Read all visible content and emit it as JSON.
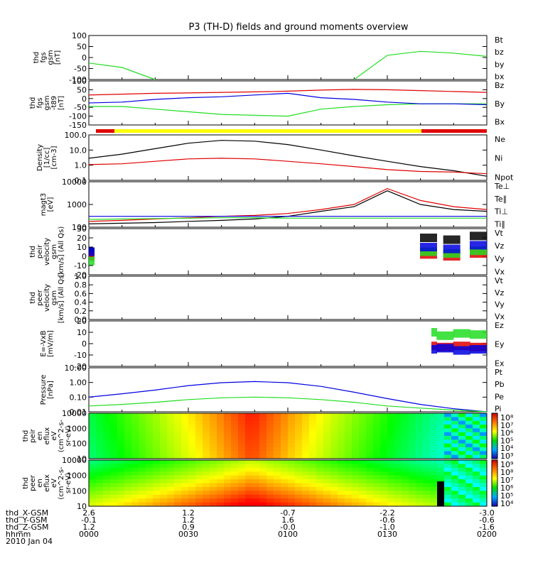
{
  "title": "P3 (TH-D) fields and ground moments overview",
  "colors": {
    "black": "#000000",
    "red": "#e00000",
    "green": "#22dd22",
    "blue": "#0000e0",
    "yellow": "#ffff00"
  },
  "panels": [
    {
      "id": "fgs",
      "ylabel": [
        "thd",
        "fgs",
        "gsm",
        "[nT]"
      ],
      "yticks": [
        "100",
        "50",
        "0",
        "-50",
        "-100"
      ],
      "legend": [
        {
          "text": "Bt",
          "color": "black"
        },
        {
          "text": "bz",
          "color": "red"
        },
        {
          "text": "by",
          "color": "green"
        },
        {
          "text": "bx",
          "color": "blue"
        }
      ]
    },
    {
      "id": "fgs-t89",
      "ylabel": [
        "thd",
        "fgs",
        "gsm",
        "-t89",
        "[nT]"
      ],
      "yticks": [
        "100",
        "50",
        "0",
        "-50",
        "-100",
        "-150"
      ],
      "legend": [
        {
          "text": "Bz",
          "color": "red"
        },
        {
          "text": "By",
          "color": "green"
        },
        {
          "text": "Bx",
          "color": "blue"
        }
      ]
    },
    {
      "id": "density",
      "ylabel": [
        "Density",
        "[1/cc]",
        "[cm-3]"
      ],
      "yticks": [
        "100.0",
        "10.0",
        "1.0",
        "0.1"
      ],
      "legend": [
        {
          "text": "Ne",
          "color": "red"
        },
        {
          "text": "Ni",
          "color": "black"
        },
        {
          "text": "Npot",
          "color": "blue"
        }
      ]
    },
    {
      "id": "temperature",
      "ylabel": [
        "magt3",
        "[eV]"
      ],
      "yticks": [
        "10000",
        "1000",
        "100"
      ],
      "legend": [
        {
          "text": "Te⊥",
          "color": "red"
        },
        {
          "text": "Te∥",
          "color": "black"
        },
        {
          "text": "Ti⊥",
          "color": "blue"
        },
        {
          "text": "Ti∥",
          "color": "green"
        }
      ]
    },
    {
      "id": "peir-velocity",
      "ylabel": [
        "thd",
        "peir",
        "velocity",
        "gsm",
        "[km/s] (All Qs)"
      ],
      "yticks": [
        "30",
        "20",
        "10",
        "0",
        "-10",
        "-20"
      ],
      "legend": [
        {
          "text": "Vt",
          "color": "black"
        },
        {
          "text": "Vz",
          "color": "red"
        },
        {
          "text": "Vy",
          "color": "green"
        },
        {
          "text": "Vx",
          "color": "blue"
        }
      ]
    },
    {
      "id": "peer-velocity",
      "ylabel": [
        "thd",
        "peer",
        "velocity",
        "gsm",
        "[km/s] (All Qs)"
      ],
      "yticks": [
        "1.0",
        "0.8",
        "0.6",
        "0.4",
        "0.2",
        "0.0"
      ],
      "legend": [
        {
          "text": "Vt",
          "color": "black"
        },
        {
          "text": "Vz",
          "color": "red"
        },
        {
          "text": "Vy",
          "color": "green"
        },
        {
          "text": "Vx",
          "color": "blue"
        }
      ]
    },
    {
      "id": "efield",
      "ylabel": [
        "E=-VxB",
        "[mV/m]"
      ],
      "yticks": [
        "20",
        "10",
        "0",
        "-10",
        "-20"
      ],
      "legend": [
        {
          "text": "Ez",
          "color": "red"
        },
        {
          "text": "Ey",
          "color": "green"
        },
        {
          "text": "Ex",
          "color": "blue"
        }
      ]
    },
    {
      "id": "pressure",
      "ylabel": [
        "Pressure",
        "[nPa]"
      ],
      "yticks": [
        "10.00",
        "1.00",
        "0.10",
        "0.01"
      ],
      "legend": [
        {
          "text": "Pt",
          "color": "black"
        },
        {
          "text": "Pb",
          "color": "red"
        },
        {
          "text": "Pe",
          "color": "green"
        },
        {
          "text": "Pi",
          "color": "blue"
        }
      ]
    },
    {
      "id": "peir-spec",
      "ylabel": [
        "thd",
        "peir",
        "en",
        "eflux",
        "eV",
        "(cm^2-s-",
        "sr-eV)"
      ],
      "yticks": [
        "10000",
        "1000",
        "100",
        "10"
      ],
      "colorbar": [
        "10⁸",
        "10⁷",
        "10⁶",
        "10⁵",
        "10⁴",
        "10³"
      ]
    },
    {
      "id": "peer-spec",
      "ylabel": [
        "thd",
        "peer",
        "en",
        "eflux",
        "eV",
        "(cm^2-s-",
        "sr-eV)"
      ],
      "yticks": [
        "10000",
        "1000",
        "100",
        "10"
      ],
      "colorbar": [
        "10⁹",
        "10⁸",
        "10⁷",
        "10⁶",
        "10⁵",
        "10⁴"
      ]
    }
  ],
  "footer": {
    "rows": [
      {
        "label": "thd_X-GSM",
        "values": [
          "2.6",
          "1.2",
          "-0.7",
          "-2.2",
          "-3.0"
        ]
      },
      {
        "label": "thd_Y-GSM",
        "values": [
          "-0.1",
          "1.2",
          "1.6",
          "-0.6",
          "-0.6"
        ]
      },
      {
        "label": "thd_Z-GSM",
        "values": [
          "1.2",
          "0.9",
          "-0.0",
          "-1.0",
          "-1.6"
        ]
      },
      {
        "label": "hhmm",
        "values": [
          "0000",
          "0030",
          "0100",
          "0130",
          "0200"
        ]
      }
    ],
    "date": "2010 Jan 04"
  },
  "chart_data": [
    {
      "type": "line",
      "panel": "fgs",
      "x": [
        0,
        10,
        20,
        30,
        40,
        50,
        60,
        70,
        80,
        90,
        100,
        110,
        120
      ],
      "ylim": [
        -100,
        100
      ],
      "series": [
        {
          "name": "by",
          "color": "green",
          "values": [
            -25,
            -45,
            -100,
            null,
            null,
            null,
            null,
            null,
            -100,
            10,
            28,
            20,
            5
          ]
        }
      ]
    },
    {
      "type": "line",
      "panel": "fgs-t89",
      "x": [
        0,
        10,
        20,
        30,
        40,
        50,
        60,
        70,
        80,
        90,
        100,
        110,
        120
      ],
      "ylim": [
        -150,
        100
      ],
      "series": [
        {
          "name": "Bz",
          "color": "red",
          "values": [
            20,
            25,
            30,
            32,
            35,
            38,
            42,
            48,
            52,
            50,
            45,
            40,
            35
          ]
        },
        {
          "name": "By",
          "color": "green",
          "values": [
            -45,
            -45,
            -60,
            -75,
            -90,
            -95,
            -100,
            -60,
            -45,
            -35,
            -30,
            -30,
            -30
          ]
        },
        {
          "name": "Bx",
          "color": "blue",
          "values": [
            -25,
            -20,
            -5,
            5,
            10,
            20,
            30,
            5,
            -5,
            -20,
            -30,
            -30,
            -35
          ]
        }
      ]
    },
    {
      "type": "line",
      "panel": "density",
      "yscale": "log",
      "x": [
        0,
        10,
        20,
        30,
        40,
        50,
        60,
        70,
        80,
        90,
        100,
        110,
        120
      ],
      "ylim": [
        0.05,
        100
      ],
      "series": [
        {
          "name": "Ni",
          "color": "black",
          "values": [
            2,
            4,
            10,
            25,
            40,
            35,
            20,
            8,
            3,
            1.2,
            0.5,
            0.25,
            0.1
          ]
        },
        {
          "name": "Ne",
          "color": "red",
          "values": [
            0.7,
            0.8,
            1.2,
            1.8,
            2,
            1.8,
            1.2,
            0.8,
            0.5,
            0.3,
            0.22,
            0.2,
            0.15
          ]
        }
      ]
    },
    {
      "type": "line",
      "panel": "temperature",
      "yscale": "log",
      "x": [
        0,
        10,
        20,
        30,
        40,
        50,
        60,
        70,
        80,
        90,
        100,
        110,
        120
      ],
      "ylim": [
        100,
        10000
      ],
      "series": [
        {
          "name": "Te⊥",
          "color": "red",
          "values": [
            180,
            200,
            230,
            260,
            300,
            330,
            400,
            600,
            1000,
            5000,
            1500,
            800,
            600
          ]
        },
        {
          "name": "Te∥",
          "color": "black",
          "values": [
            140,
            150,
            160,
            180,
            200,
            230,
            300,
            500,
            800,
            4000,
            1000,
            600,
            500
          ]
        },
        {
          "name": "Ti⊥",
          "color": "blue",
          "values": [
            300,
            300,
            300,
            300,
            300,
            300,
            300,
            300,
            300,
            300,
            300,
            300,
            300
          ]
        },
        {
          "name": "Ti∥",
          "color": "green",
          "values": [
            220,
            230,
            240,
            250,
            260,
            260,
            250,
            250,
            250,
            250,
            250,
            250,
            250
          ]
        }
      ]
    },
    {
      "type": "scatter",
      "panel": "peir-velocity",
      "x": [
        0,
        105,
        112,
        120
      ],
      "ylim": [
        -20,
        30
      ],
      "series": [
        {
          "name": "Vt",
          "color": "black",
          "values": [
            5,
            20,
            18,
            22
          ]
        },
        {
          "name": "Vz",
          "color": "red",
          "values": [
            0,
            2,
            0,
            3
          ]
        },
        {
          "name": "Vy",
          "color": "green",
          "values": [
            -5,
            5,
            3,
            6
          ]
        },
        {
          "name": "Vx",
          "color": "blue",
          "values": [
            5,
            10,
            8,
            12
          ]
        }
      ]
    },
    {
      "type": "scatter",
      "panel": "efield",
      "x": [
        105,
        110,
        115,
        120
      ],
      "ylim": [
        -20,
        20
      ],
      "series": [
        {
          "name": "Ez",
          "color": "red",
          "values": [
            -2,
            -3,
            -2,
            -3
          ]
        },
        {
          "name": "Ey",
          "color": "green",
          "values": [
            10,
            7,
            9,
            8
          ]
        },
        {
          "name": "Ex",
          "color": "blue",
          "values": [
            -5,
            -4,
            -6,
            -5
          ]
        }
      ]
    },
    {
      "type": "line",
      "panel": "pressure",
      "yscale": "log",
      "x": [
        0,
        10,
        20,
        30,
        40,
        50,
        60,
        70,
        80,
        90,
        100,
        110,
        120
      ],
      "ylim": [
        0.005,
        20
      ],
      "series": [
        {
          "name": "Pi",
          "color": "blue",
          "values": [
            0.08,
            0.15,
            0.3,
            0.7,
            1.2,
            1.5,
            1.2,
            0.6,
            0.2,
            0.06,
            0.02,
            0.009,
            0.005
          ]
        },
        {
          "name": "Pe",
          "color": "green",
          "values": [
            0.015,
            0.02,
            0.03,
            0.05,
            0.07,
            0.08,
            0.07,
            0.05,
            0.03,
            0.015,
            0.01,
            0.007,
            0.005
          ]
        }
      ]
    }
  ]
}
